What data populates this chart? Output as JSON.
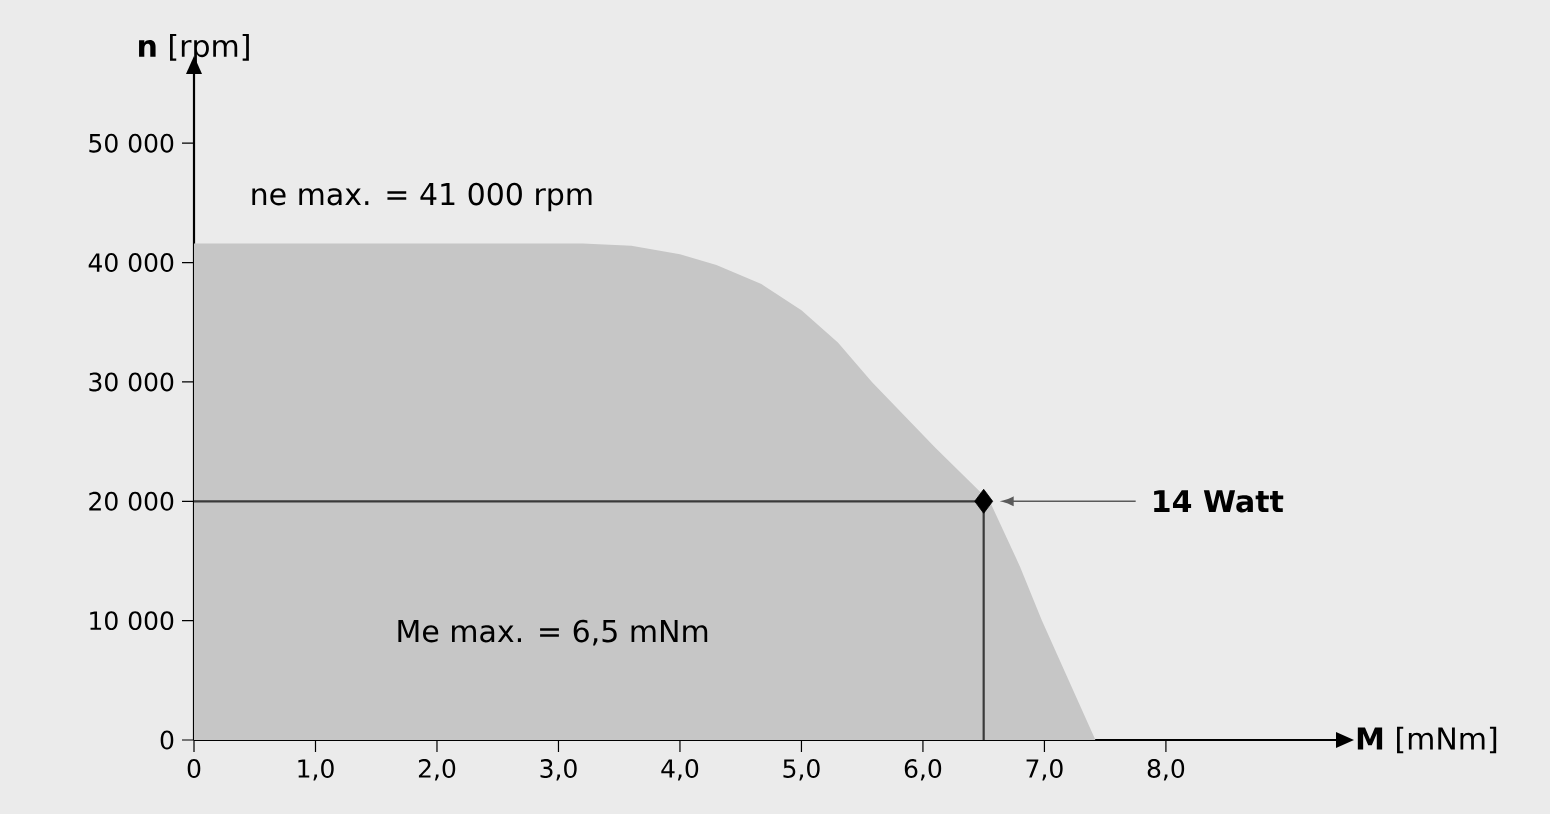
{
  "chart_data": {
    "type": "area",
    "xlabel": "**M** [mNm]",
    "ylabel": "**n** [rpm]",
    "xlim": [
      0,
      9.4
    ],
    "ylim": [
      0,
      55800
    ],
    "xticks": [
      0,
      {
        "value": 1,
        "label": "1,0"
      },
      {
        "value": 2,
        "label": "2,0"
      },
      {
        "value": 3,
        "label": "3,0"
      },
      {
        "value": 4,
        "label": "4,0"
      },
      {
        "value": 5,
        "label": "5,0"
      },
      {
        "value": 6,
        "label": "6,0"
      },
      {
        "value": 7,
        "label": "7,0"
      },
      {
        "value": 8,
        "label": "8,0"
      }
    ],
    "yticks": [
      0,
      {
        "value": 10000,
        "label": "10 000"
      },
      {
        "value": 20000,
        "label": "20 000"
      },
      {
        "value": 30000,
        "label": "30 000"
      },
      {
        "value": 40000,
        "label": "40 000"
      },
      {
        "value": 50000,
        "label": "50 000"
      }
    ],
    "series": [
      {
        "color": "#c6c6c6",
        "x": [
          0,
          3.2,
          3.6,
          4.0,
          4.3,
          4.67,
          5.0,
          5.3,
          5.58,
          6.1,
          6.55,
          6.8,
          6.98,
          7.2,
          7.42
        ],
        "values": [
          41600,
          41600,
          41400,
          40700,
          39800,
          38200,
          36000,
          33300,
          30000,
          24500,
          20000,
          14500,
          10000,
          5000,
          0
        ]
      },
      {
        "type": "line",
        "color": "#3a3a3a",
        "x": [
          0,
          6.5,
          6.5
        ],
        "values": [
          20000,
          20000,
          0
        ]
      },
      {
        "type": "scatter",
        "marker": "diamond",
        "color": "#000000",
        "x": [
          6.5
        ],
        "values": [
          20000
        ]
      }
    ],
    "annotations": [
      "ne max. = 41 000 rpm",
      "Me max. = 6,5 mNm",
      "**14 Watt**"
    ]
  }
}
